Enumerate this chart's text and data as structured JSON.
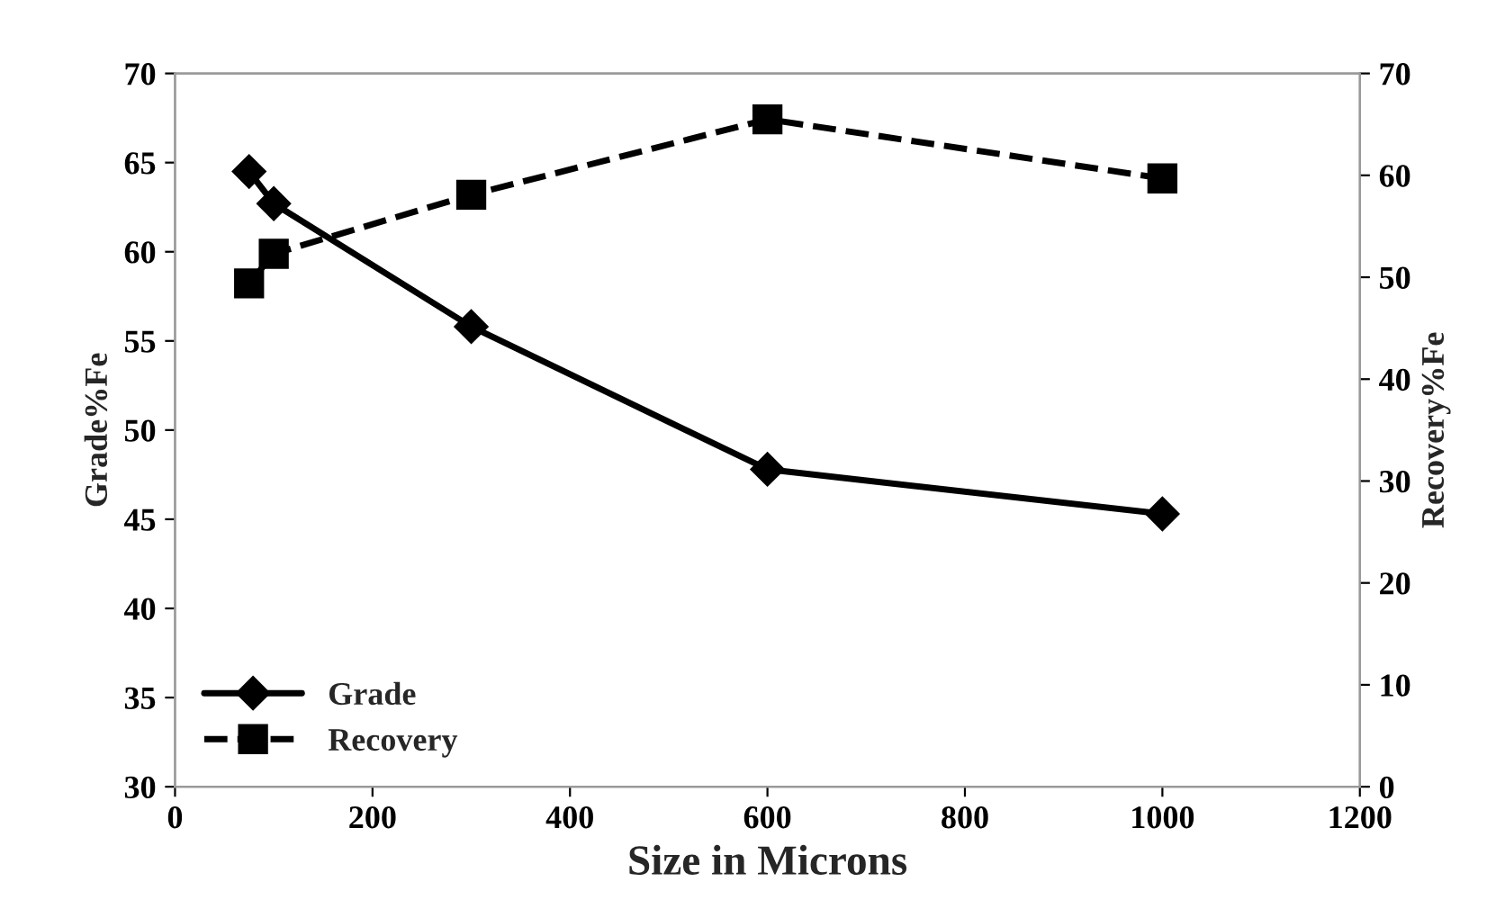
{
  "chart_data": {
    "type": "line",
    "xlabel": "Size in Microns",
    "ylabel": "Grade%Fe",
    "y2label": "Recovery%Fe",
    "xlim": [
      0,
      1200
    ],
    "xticks": [
      0,
      200,
      400,
      600,
      800,
      1000,
      1200
    ],
    "ylim": [
      30,
      70
    ],
    "yticks": [
      30,
      35,
      40,
      45,
      50,
      55,
      60,
      65,
      70
    ],
    "y2lim": [
      0,
      70
    ],
    "y2ticks": [
      0,
      10,
      20,
      30,
      40,
      50,
      60,
      70
    ],
    "legend": "bottom left",
    "grid": false,
    "series": [
      {
        "name": "Grade",
        "color": "#000000",
        "marker": "diamond",
        "line_style": "solid",
        "x": [
          75,
          100,
          300,
          600,
          1000
        ],
        "values": [
          64.5,
          62.7,
          55.8,
          47.8,
          45.3
        ]
      },
      {
        "name": "Recovery",
        "color": "#000000",
        "marker": "square",
        "line_style": "dashed",
        "axis": "y2",
        "x": [
          75,
          100,
          300,
          600,
          1000
        ],
        "values": [
          49.4,
          52.3,
          58.1,
          65.5,
          59.7
        ]
      }
    ]
  }
}
